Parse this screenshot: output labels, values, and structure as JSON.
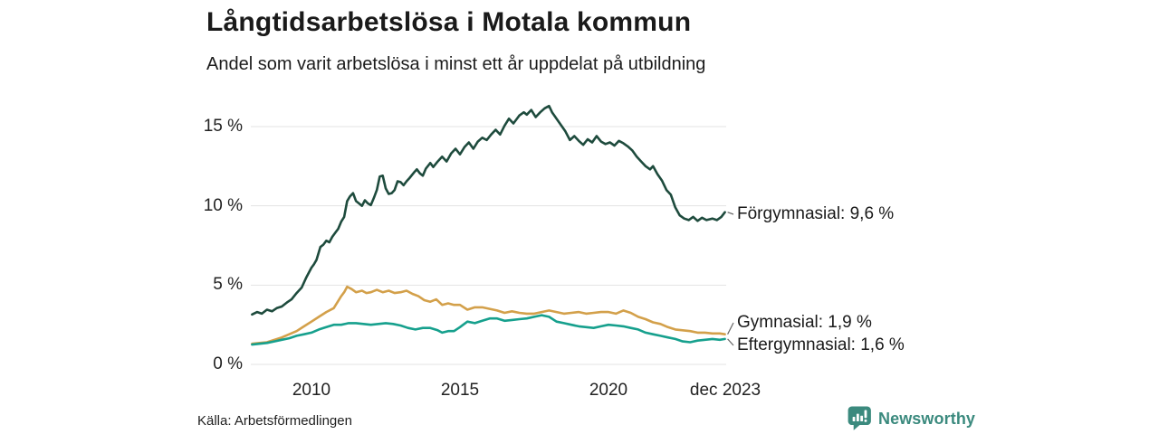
{
  "header": {
    "title": "Långtidsarbetslösa i Motala kommun",
    "subtitle": "Andel som varit arbetslösa i minst ett år uppdelat på utbildning"
  },
  "footer": {
    "source": "Källa: Arbetsförmedlingen",
    "brand": "Newsworthy",
    "brand_icon": "newsworthy-speech-bubble-bar-chart-icon",
    "brand_color": "#3b8a7e"
  },
  "colors": {
    "background": "#ffffff",
    "title_text": "#1a1a1a",
    "axis_text": "#222222",
    "gridline": "#e3e3e3",
    "connector": "#666666",
    "series_forgymnasial": "#1e4b3d",
    "series_gymnasial": "#d3a04a",
    "series_eftergymnasial": "#16a08d"
  },
  "chart_data": {
    "type": "line",
    "title": "Långtidsarbetslösa i Motala kommun",
    "subtitle": "Andel som varit arbetslösa i minst ett år uppdelat på utbildning",
    "unit": "%",
    "grid": true,
    "legend_position": "end-of-line-labels",
    "x_axis": {
      "range_years": [
        2008.0,
        2023.92
      ],
      "ticks": [
        {
          "label": "2010",
          "year": 2010
        },
        {
          "label": "2015",
          "year": 2015
        },
        {
          "label": "2020",
          "year": 2020
        },
        {
          "label": "dec 2023",
          "year": 2023.92
        }
      ]
    },
    "y_axis": {
      "ticks": [
        "0 %",
        "5 %",
        "10 %",
        "15 %"
      ],
      "tick_values": [
        0,
        5,
        10,
        15
      ],
      "range": [
        0,
        16.5
      ]
    },
    "series": [
      {
        "name": "Förgymnasial",
        "end_label": "Förgymnasial: 9,6 %",
        "last_value": 9.6,
        "color": "#1e4b3d",
        "points": [
          [
            2008.0,
            3.15
          ],
          [
            2008.17,
            3.3
          ],
          [
            2008.33,
            3.2
          ],
          [
            2008.5,
            3.45
          ],
          [
            2008.67,
            3.35
          ],
          [
            2008.83,
            3.55
          ],
          [
            2009.0,
            3.65
          ],
          [
            2009.17,
            3.9
          ],
          [
            2009.33,
            4.1
          ],
          [
            2009.5,
            4.5
          ],
          [
            2009.67,
            4.85
          ],
          [
            2009.83,
            5.5
          ],
          [
            2010.0,
            6.1
          ],
          [
            2010.08,
            6.3
          ],
          [
            2010.17,
            6.6
          ],
          [
            2010.3,
            7.4
          ],
          [
            2010.4,
            7.55
          ],
          [
            2010.5,
            7.8
          ],
          [
            2010.6,
            7.7
          ],
          [
            2010.7,
            8.05
          ],
          [
            2010.8,
            8.3
          ],
          [
            2010.9,
            8.55
          ],
          [
            2011.0,
            9.0
          ],
          [
            2011.1,
            9.3
          ],
          [
            2011.2,
            10.3
          ],
          [
            2011.3,
            10.6
          ],
          [
            2011.4,
            10.8
          ],
          [
            2011.5,
            10.3
          ],
          [
            2011.6,
            10.15
          ],
          [
            2011.7,
            10.0
          ],
          [
            2011.8,
            10.35
          ],
          [
            2011.9,
            10.15
          ],
          [
            2012.0,
            10.05
          ],
          [
            2012.1,
            10.5
          ],
          [
            2012.2,
            11.0
          ],
          [
            2012.3,
            11.85
          ],
          [
            2012.4,
            11.9
          ],
          [
            2012.5,
            11.1
          ],
          [
            2012.6,
            10.75
          ],
          [
            2012.7,
            10.8
          ],
          [
            2012.8,
            11.0
          ],
          [
            2012.9,
            11.55
          ],
          [
            2013.0,
            11.5
          ],
          [
            2013.1,
            11.3
          ],
          [
            2013.2,
            11.55
          ],
          [
            2013.3,
            11.75
          ],
          [
            2013.45,
            12.1
          ],
          [
            2013.55,
            12.3
          ],
          [
            2013.65,
            12.05
          ],
          [
            2013.75,
            11.9
          ],
          [
            2013.85,
            12.35
          ],
          [
            2014.0,
            12.7
          ],
          [
            2014.1,
            12.45
          ],
          [
            2014.25,
            12.8
          ],
          [
            2014.4,
            13.1
          ],
          [
            2014.55,
            12.8
          ],
          [
            2014.7,
            13.3
          ],
          [
            2014.85,
            13.6
          ],
          [
            2015.0,
            13.25
          ],
          [
            2015.15,
            13.7
          ],
          [
            2015.3,
            14.0
          ],
          [
            2015.45,
            13.6
          ],
          [
            2015.6,
            14.05
          ],
          [
            2015.75,
            14.3
          ],
          [
            2015.9,
            14.15
          ],
          [
            2016.05,
            14.5
          ],
          [
            2016.2,
            14.8
          ],
          [
            2016.35,
            14.5
          ],
          [
            2016.5,
            15.05
          ],
          [
            2016.65,
            15.5
          ],
          [
            2016.8,
            15.2
          ],
          [
            2016.9,
            15.45
          ],
          [
            2017.0,
            15.7
          ],
          [
            2017.15,
            15.9
          ],
          [
            2017.25,
            15.75
          ],
          [
            2017.4,
            16.05
          ],
          [
            2017.55,
            15.6
          ],
          [
            2017.7,
            15.9
          ],
          [
            2017.85,
            16.15
          ],
          [
            2018.0,
            16.3
          ],
          [
            2018.1,
            15.9
          ],
          [
            2018.25,
            15.5
          ],
          [
            2018.4,
            15.1
          ],
          [
            2018.55,
            14.7
          ],
          [
            2018.7,
            14.15
          ],
          [
            2018.85,
            14.4
          ],
          [
            2019.0,
            14.1
          ],
          [
            2019.15,
            13.85
          ],
          [
            2019.3,
            14.2
          ],
          [
            2019.45,
            14.0
          ],
          [
            2019.6,
            14.4
          ],
          [
            2019.75,
            14.05
          ],
          [
            2019.9,
            13.9
          ],
          [
            2020.05,
            14.0
          ],
          [
            2020.2,
            13.8
          ],
          [
            2020.35,
            14.1
          ],
          [
            2020.5,
            13.95
          ],
          [
            2020.65,
            13.75
          ],
          [
            2020.8,
            13.5
          ],
          [
            2020.95,
            13.1
          ],
          [
            2021.1,
            12.8
          ],
          [
            2021.25,
            12.5
          ],
          [
            2021.4,
            12.3
          ],
          [
            2021.5,
            12.5
          ],
          [
            2021.65,
            12.0
          ],
          [
            2021.8,
            11.6
          ],
          [
            2021.95,
            11.0
          ],
          [
            2022.1,
            10.7
          ],
          [
            2022.25,
            9.9
          ],
          [
            2022.4,
            9.4
          ],
          [
            2022.55,
            9.2
          ],
          [
            2022.7,
            9.1
          ],
          [
            2022.85,
            9.3
          ],
          [
            2023.0,
            9.05
          ],
          [
            2023.15,
            9.25
          ],
          [
            2023.3,
            9.1
          ],
          [
            2023.5,
            9.2
          ],
          [
            2023.65,
            9.1
          ],
          [
            2023.8,
            9.3
          ],
          [
            2023.92,
            9.6
          ]
        ]
      },
      {
        "name": "Gymnasial",
        "end_label": "Gymnasial: 1,9 %",
        "last_value": 1.9,
        "color": "#d3a04a",
        "points": [
          [
            2008.0,
            1.3
          ],
          [
            2008.25,
            1.35
          ],
          [
            2008.5,
            1.4
          ],
          [
            2008.75,
            1.55
          ],
          [
            2009.0,
            1.7
          ],
          [
            2009.25,
            1.9
          ],
          [
            2009.5,
            2.1
          ],
          [
            2009.75,
            2.4
          ],
          [
            2010.0,
            2.7
          ],
          [
            2010.25,
            3.0
          ],
          [
            2010.5,
            3.3
          ],
          [
            2010.75,
            3.55
          ],
          [
            2011.0,
            4.3
          ],
          [
            2011.1,
            4.55
          ],
          [
            2011.2,
            4.9
          ],
          [
            2011.35,
            4.75
          ],
          [
            2011.5,
            4.55
          ],
          [
            2011.7,
            4.65
          ],
          [
            2011.85,
            4.5
          ],
          [
            2012.0,
            4.55
          ],
          [
            2012.2,
            4.7
          ],
          [
            2012.4,
            4.55
          ],
          [
            2012.6,
            4.65
          ],
          [
            2012.8,
            4.5
          ],
          [
            2013.0,
            4.55
          ],
          [
            2013.2,
            4.65
          ],
          [
            2013.4,
            4.45
          ],
          [
            2013.6,
            4.3
          ],
          [
            2013.8,
            4.05
          ],
          [
            2014.0,
            3.95
          ],
          [
            2014.2,
            4.1
          ],
          [
            2014.4,
            3.75
          ],
          [
            2014.6,
            3.85
          ],
          [
            2014.8,
            3.75
          ],
          [
            2015.0,
            3.75
          ],
          [
            2015.25,
            3.45
          ],
          [
            2015.5,
            3.6
          ],
          [
            2015.75,
            3.6
          ],
          [
            2016.0,
            3.5
          ],
          [
            2016.25,
            3.4
          ],
          [
            2016.5,
            3.25
          ],
          [
            2016.75,
            3.35
          ],
          [
            2017.0,
            3.25
          ],
          [
            2017.25,
            3.2
          ],
          [
            2017.5,
            3.2
          ],
          [
            2017.75,
            3.3
          ],
          [
            2018.0,
            3.4
          ],
          [
            2018.25,
            3.3
          ],
          [
            2018.5,
            3.2
          ],
          [
            2018.75,
            3.25
          ],
          [
            2019.0,
            3.3
          ],
          [
            2019.25,
            3.2
          ],
          [
            2019.5,
            3.25
          ],
          [
            2019.75,
            3.3
          ],
          [
            2020.0,
            3.3
          ],
          [
            2020.25,
            3.2
          ],
          [
            2020.5,
            3.4
          ],
          [
            2020.75,
            3.25
          ],
          [
            2021.0,
            3.0
          ],
          [
            2021.25,
            2.85
          ],
          [
            2021.5,
            2.65
          ],
          [
            2021.75,
            2.55
          ],
          [
            2022.0,
            2.35
          ],
          [
            2022.25,
            2.2
          ],
          [
            2022.5,
            2.15
          ],
          [
            2022.75,
            2.1
          ],
          [
            2023.0,
            2.0
          ],
          [
            2023.25,
            2.0
          ],
          [
            2023.5,
            1.95
          ],
          [
            2023.75,
            1.95
          ],
          [
            2023.92,
            1.9
          ]
        ]
      },
      {
        "name": "Eftergymnasial",
        "end_label": "Eftergymnasial: 1,6 %",
        "last_value": 1.6,
        "color": "#16a08d",
        "points": [
          [
            2008.0,
            1.25
          ],
          [
            2008.25,
            1.3
          ],
          [
            2008.5,
            1.35
          ],
          [
            2008.75,
            1.45
          ],
          [
            2009.0,
            1.55
          ],
          [
            2009.25,
            1.65
          ],
          [
            2009.5,
            1.8
          ],
          [
            2009.75,
            1.9
          ],
          [
            2010.0,
            2.0
          ],
          [
            2010.25,
            2.2
          ],
          [
            2010.5,
            2.35
          ],
          [
            2010.75,
            2.5
          ],
          [
            2011.0,
            2.5
          ],
          [
            2011.25,
            2.6
          ],
          [
            2011.5,
            2.6
          ],
          [
            2011.75,
            2.55
          ],
          [
            2012.0,
            2.5
          ],
          [
            2012.25,
            2.55
          ],
          [
            2012.5,
            2.6
          ],
          [
            2012.75,
            2.55
          ],
          [
            2013.0,
            2.45
          ],
          [
            2013.25,
            2.3
          ],
          [
            2013.5,
            2.2
          ],
          [
            2013.75,
            2.3
          ],
          [
            2014.0,
            2.3
          ],
          [
            2014.25,
            2.15
          ],
          [
            2014.4,
            2.0
          ],
          [
            2014.6,
            2.1
          ],
          [
            2014.8,
            2.1
          ],
          [
            2015.0,
            2.35
          ],
          [
            2015.25,
            2.7
          ],
          [
            2015.5,
            2.6
          ],
          [
            2015.75,
            2.75
          ],
          [
            2016.0,
            2.9
          ],
          [
            2016.25,
            2.9
          ],
          [
            2016.5,
            2.75
          ],
          [
            2016.75,
            2.8
          ],
          [
            2017.0,
            2.85
          ],
          [
            2017.25,
            2.9
          ],
          [
            2017.5,
            3.0
          ],
          [
            2017.75,
            3.1
          ],
          [
            2018.0,
            3.0
          ],
          [
            2018.25,
            2.7
          ],
          [
            2018.5,
            2.6
          ],
          [
            2018.75,
            2.5
          ],
          [
            2019.0,
            2.4
          ],
          [
            2019.25,
            2.35
          ],
          [
            2019.5,
            2.3
          ],
          [
            2019.75,
            2.4
          ],
          [
            2020.0,
            2.5
          ],
          [
            2020.25,
            2.45
          ],
          [
            2020.5,
            2.4
          ],
          [
            2020.75,
            2.3
          ],
          [
            2021.0,
            2.2
          ],
          [
            2021.25,
            2.0
          ],
          [
            2021.5,
            1.9
          ],
          [
            2021.75,
            1.8
          ],
          [
            2022.0,
            1.7
          ],
          [
            2022.25,
            1.6
          ],
          [
            2022.5,
            1.45
          ],
          [
            2022.75,
            1.4
          ],
          [
            2023.0,
            1.5
          ],
          [
            2023.25,
            1.55
          ],
          [
            2023.5,
            1.6
          ],
          [
            2023.75,
            1.55
          ],
          [
            2023.92,
            1.6
          ]
        ]
      }
    ]
  }
}
